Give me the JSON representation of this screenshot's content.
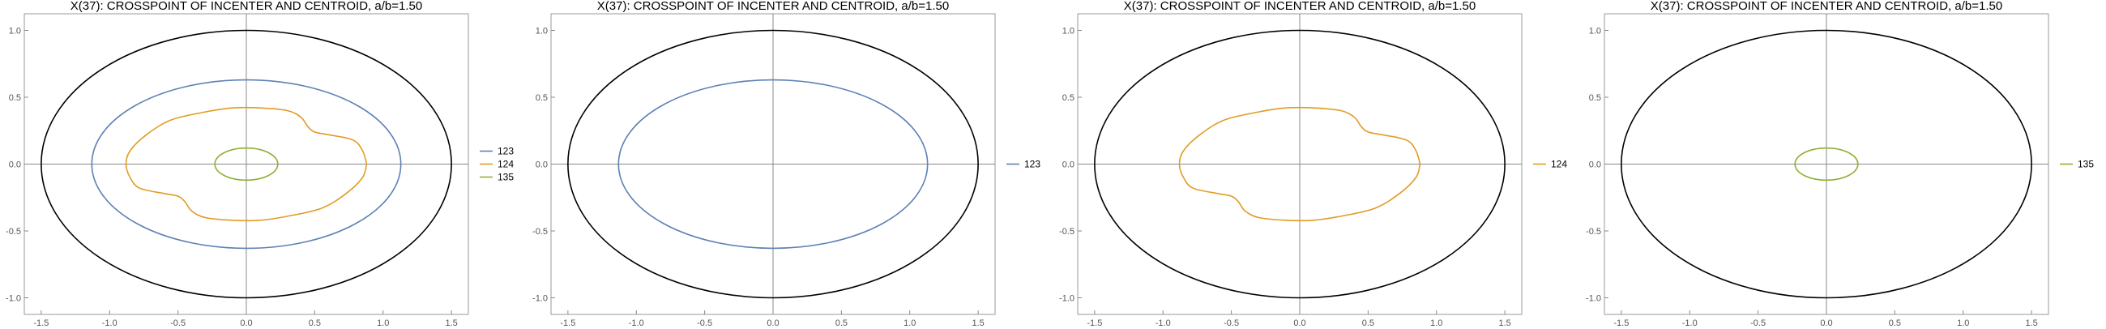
{
  "chart_data": [
    {
      "type": "line",
      "title": "X(37): CROSSPOINT OF INCENTER AND CENTROID, a/b=1.50",
      "xlim": [
        -1.6,
        1.6
      ],
      "ylim": [
        -1.1,
        1.1
      ],
      "xticks": [
        -1.5,
        -1.0,
        -0.5,
        0.0,
        0.5,
        1.0,
        1.5
      ],
      "xtick_labels": [
        "-1.5",
        "-1.0",
        "-0.5",
        "0.0",
        "0.5",
        "1.0",
        "1.5"
      ],
      "yticks": [
        -1.0,
        -0.5,
        0.0,
        0.5,
        1.0
      ],
      "ytick_labels": [
        "-1.0",
        "-0.5",
        "0.0",
        "0.5",
        "1.0"
      ],
      "legend_position": "right",
      "ellipse": {
        "a": 1.5,
        "b": 1.0,
        "color": "#000000"
      },
      "series": [
        {
          "name": "123",
          "color": "#5e81b5",
          "shape": "ellipse",
          "rx": 1.13,
          "ry": 0.63,
          "cx": 0.0,
          "cy": 0.0
        },
        {
          "name": "124",
          "color": "#e19c24",
          "shape": "kidney",
          "points": [
            [
              0.88,
              0.0
            ],
            [
              0.85,
              0.1
            ],
            [
              0.78,
              0.18
            ],
            [
              0.6,
              0.22
            ],
            [
              0.5,
              0.24
            ],
            [
              0.45,
              0.28
            ],
            [
              0.4,
              0.35
            ],
            [
              0.3,
              0.4
            ],
            [
              0.1,
              0.42
            ],
            [
              -0.1,
              0.42
            ],
            [
              -0.3,
              0.39
            ],
            [
              -0.55,
              0.33
            ],
            [
              -0.73,
              0.22
            ],
            [
              -0.85,
              0.1
            ],
            [
              -0.88,
              0.0
            ],
            [
              -0.85,
              -0.1
            ],
            [
              -0.78,
              -0.18
            ],
            [
              -0.6,
              -0.22
            ],
            [
              -0.5,
              -0.24
            ],
            [
              -0.45,
              -0.28
            ],
            [
              -0.4,
              -0.35
            ],
            [
              -0.3,
              -0.4
            ],
            [
              -0.1,
              -0.42
            ],
            [
              0.1,
              -0.42
            ],
            [
              0.3,
              -0.39
            ],
            [
              0.55,
              -0.33
            ],
            [
              0.73,
              -0.22
            ],
            [
              0.85,
              -0.1
            ],
            [
              0.88,
              0.0
            ]
          ]
        },
        {
          "name": "135",
          "color": "#8fb032",
          "shape": "ellipse",
          "rx": 0.23,
          "ry": 0.12,
          "cx": 0.0,
          "cy": 0.0
        }
      ]
    },
    {
      "type": "line",
      "title": "X(37): CROSSPOINT OF INCENTER AND CENTROID, a/b=1.50",
      "xlim": [
        -1.6,
        1.6
      ],
      "ylim": [
        -1.1,
        1.1
      ],
      "xticks": [
        -1.5,
        -1.0,
        -0.5,
        0.0,
        0.5,
        1.0,
        1.5
      ],
      "xtick_labels": [
        "-1.5",
        "-1.0",
        "-0.5",
        "0.0",
        "0.5",
        "1.0",
        "1.5"
      ],
      "yticks": [
        -1.0,
        -0.5,
        0.0,
        0.5,
        1.0
      ],
      "ytick_labels": [
        "-1.0",
        "-0.5",
        "0.0",
        "0.5",
        "1.0"
      ],
      "legend_position": "right",
      "ellipse": {
        "a": 1.5,
        "b": 1.0,
        "color": "#000000"
      },
      "series": [
        {
          "name": "123",
          "color": "#5e81b5",
          "shape": "ellipse",
          "rx": 1.13,
          "ry": 0.63,
          "cx": 0.0,
          "cy": 0.0
        }
      ]
    },
    {
      "type": "line",
      "title": "X(37): CROSSPOINT OF INCENTER AND CENTROID, a/b=1.50",
      "xlim": [
        -1.6,
        1.6
      ],
      "ylim": [
        -1.1,
        1.1
      ],
      "xticks": [
        -1.5,
        -1.0,
        -0.5,
        0.0,
        0.5,
        1.0,
        1.5
      ],
      "xtick_labels": [
        "-1.5",
        "-1.0",
        "-0.5",
        "0.0",
        "0.5",
        "1.0",
        "1.5"
      ],
      "yticks": [
        -1.0,
        -0.5,
        0.0,
        0.5,
        1.0
      ],
      "ytick_labels": [
        "-1.0",
        "-0.5",
        "0.0",
        "0.5",
        "1.0"
      ],
      "legend_position": "right",
      "ellipse": {
        "a": 1.5,
        "b": 1.0,
        "color": "#000000"
      },
      "series": [
        {
          "name": "124",
          "color": "#e19c24",
          "shape": "kidney",
          "points": [
            [
              0.88,
              0.0
            ],
            [
              0.85,
              0.1
            ],
            [
              0.78,
              0.18
            ],
            [
              0.6,
              0.22
            ],
            [
              0.5,
              0.24
            ],
            [
              0.45,
              0.28
            ],
            [
              0.4,
              0.35
            ],
            [
              0.3,
              0.4
            ],
            [
              0.1,
              0.42
            ],
            [
              -0.1,
              0.42
            ],
            [
              -0.3,
              0.39
            ],
            [
              -0.55,
              0.33
            ],
            [
              -0.73,
              0.22
            ],
            [
              -0.85,
              0.1
            ],
            [
              -0.88,
              0.0
            ],
            [
              -0.85,
              -0.1
            ],
            [
              -0.78,
              -0.18
            ],
            [
              -0.6,
              -0.22
            ],
            [
              -0.5,
              -0.24
            ],
            [
              -0.45,
              -0.28
            ],
            [
              -0.4,
              -0.35
            ],
            [
              -0.3,
              -0.4
            ],
            [
              -0.1,
              -0.42
            ],
            [
              0.1,
              -0.42
            ],
            [
              0.3,
              -0.39
            ],
            [
              0.55,
              -0.33
            ],
            [
              0.73,
              -0.22
            ],
            [
              0.85,
              -0.1
            ],
            [
              0.88,
              0.0
            ]
          ]
        }
      ]
    },
    {
      "type": "line",
      "title": "X(37): CROSSPOINT OF INCENTER AND CENTROID, a/b=1.50",
      "xlim": [
        -1.6,
        1.6
      ],
      "ylim": [
        -1.1,
        1.1
      ],
      "xticks": [
        -1.5,
        -1.0,
        -0.5,
        0.0,
        0.5,
        1.0,
        1.5
      ],
      "xtick_labels": [
        "-1.5",
        "-1.0",
        "-0.5",
        "0.0",
        "0.5",
        "1.0",
        "1.5"
      ],
      "yticks": [
        -1.0,
        -0.5,
        0.0,
        0.5,
        1.0
      ],
      "ytick_labels": [
        "-1.0",
        "-0.5",
        "0.0",
        "0.5",
        "1.0"
      ],
      "legend_position": "right",
      "ellipse": {
        "a": 1.5,
        "b": 1.0,
        "color": "#000000"
      },
      "series": [
        {
          "name": "135",
          "color": "#8fb032",
          "shape": "ellipse",
          "rx": 0.23,
          "ry": 0.12,
          "cx": 0.0,
          "cy": 0.0
        }
      ]
    }
  ]
}
